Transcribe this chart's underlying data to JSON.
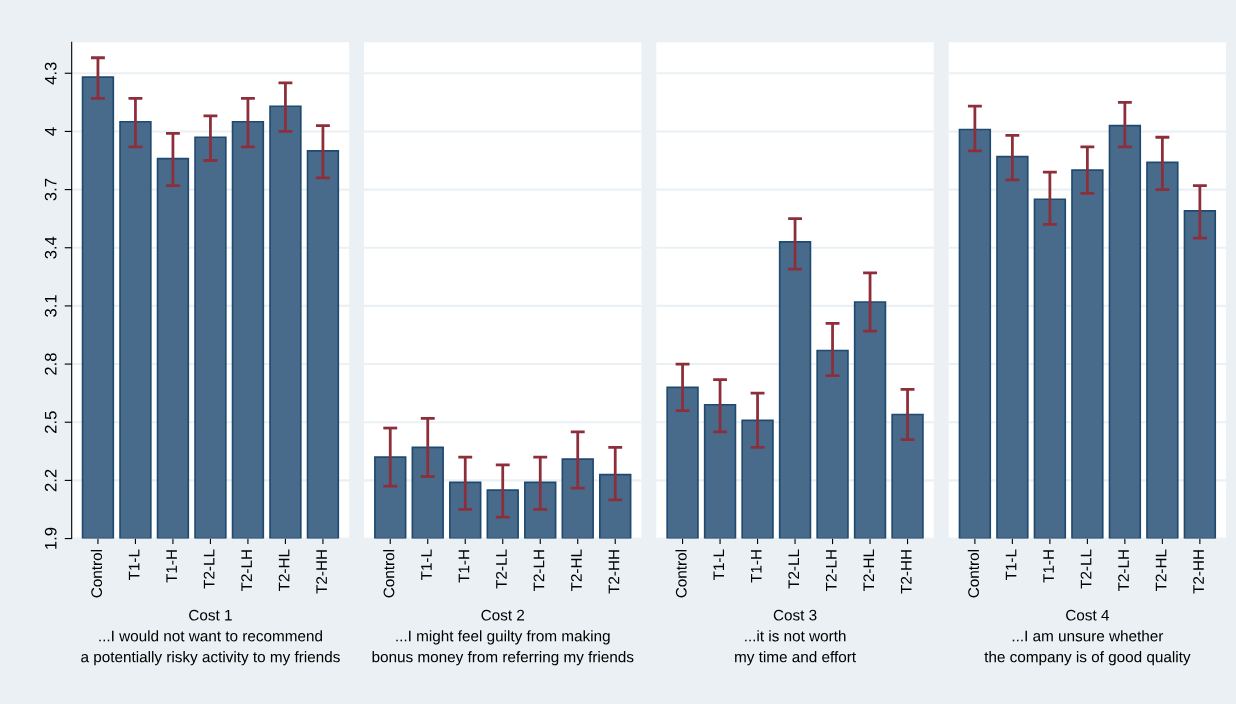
{
  "chart_data": [
    {
      "type": "bar",
      "xlabel": "Cost 1\n...I would not want to recommend\na potentially risky activity to my friends",
      "categories": [
        "Control",
        "T1-L",
        "T1-H",
        "T2-LL",
        "T2-LH",
        "T2-HL",
        "T2-HH"
      ],
      "series": [
        {
          "color": "#486b8c",
          "values": [
            4.28,
            4.05,
            3.86,
            3.97,
            4.05,
            4.13,
            3.9
          ],
          "errors": [
            [
              4.17,
              4.38
            ],
            [
              3.92,
              4.17
            ],
            [
              3.72,
              3.99
            ],
            [
              3.85,
              4.08
            ],
            [
              3.92,
              4.17
            ],
            [
              4.0,
              4.25
            ],
            [
              3.76,
              4.03
            ]
          ]
        }
      ],
      "ylim": [
        1.9,
        4.46
      ],
      "yticks": [
        1.9,
        2.2,
        2.5,
        2.8,
        3.1,
        3.4,
        3.7,
        4,
        4.3
      ],
      "grid": "y"
    },
    {
      "type": "bar",
      "xlabel": "Cost 2\n...I might feel guilty from making\nbonus money from referring my friends",
      "categories": [
        "Control",
        "T1-L",
        "T1-H",
        "T2-LL",
        "T2-LH",
        "T2-HL",
        "T2-HH"
      ],
      "series": [
        {
          "color": "#486b8c",
          "values": [
            2.32,
            2.37,
            2.19,
            2.15,
            2.19,
            2.31,
            2.23
          ],
          "errors": [
            [
              2.17,
              2.47
            ],
            [
              2.22,
              2.52
            ],
            [
              2.05,
              2.32
            ],
            [
              2.01,
              2.28
            ],
            [
              2.05,
              2.32
            ],
            [
              2.16,
              2.45
            ],
            [
              2.1,
              2.37
            ]
          ]
        }
      ],
      "ylim": [
        1.9,
        4.46
      ],
      "yticks": [
        1.9,
        2.2,
        2.5,
        2.8,
        3.1,
        3.4,
        3.7,
        4,
        4.3
      ],
      "grid": "y",
      "tick_labels": "x"
    },
    {
      "type": "bar",
      "xlabel": "Cost 3\n...it is not worth\nmy time and effort",
      "categories": [
        "Control",
        "T1-L",
        "T1-H",
        "T2-LL",
        "T2-LH",
        "T2-HL",
        "T2-HH"
      ],
      "series": [
        {
          "color": "#486b8c",
          "values": [
            2.68,
            2.59,
            2.51,
            3.43,
            2.87,
            3.12,
            2.54
          ],
          "errors": [
            [
              2.56,
              2.8
            ],
            [
              2.45,
              2.72
            ],
            [
              2.37,
              2.65
            ],
            [
              3.29,
              3.55
            ],
            [
              2.74,
              3.01
            ],
            [
              2.97,
              3.27
            ],
            [
              2.41,
              2.67
            ]
          ]
        }
      ],
      "ylim": [
        1.9,
        4.46
      ],
      "yticks": [
        1.9,
        2.2,
        2.5,
        2.8,
        3.1,
        3.4,
        3.7,
        4,
        4.3
      ],
      "grid": "y",
      "tick_labels": "x"
    },
    {
      "type": "bar",
      "xlabel": "Cost 4\n...I am unsure whether\nthe company is of good quality",
      "categories": [
        "Control",
        "T1-L",
        "T1-H",
        "T2-LL",
        "T2-LH",
        "T2-HL",
        "T2-HH"
      ],
      "series": [
        {
          "color": "#486b8c",
          "values": [
            4.01,
            3.87,
            3.65,
            3.8,
            4.03,
            3.84,
            3.59
          ],
          "errors": [
            [
              3.9,
              4.13
            ],
            [
              3.75,
              3.98
            ],
            [
              3.52,
              3.79
            ],
            [
              3.68,
              3.92
            ],
            [
              3.92,
              4.15
            ],
            [
              3.7,
              3.97
            ],
            [
              3.45,
              3.72
            ]
          ]
        }
      ],
      "ylim": [
        1.9,
        4.46
      ],
      "yticks": [
        1.9,
        2.2,
        2.5,
        2.8,
        3.1,
        3.4,
        3.7,
        4,
        4.3
      ],
      "grid": "y",
      "tick_labels": "x"
    }
  ]
}
